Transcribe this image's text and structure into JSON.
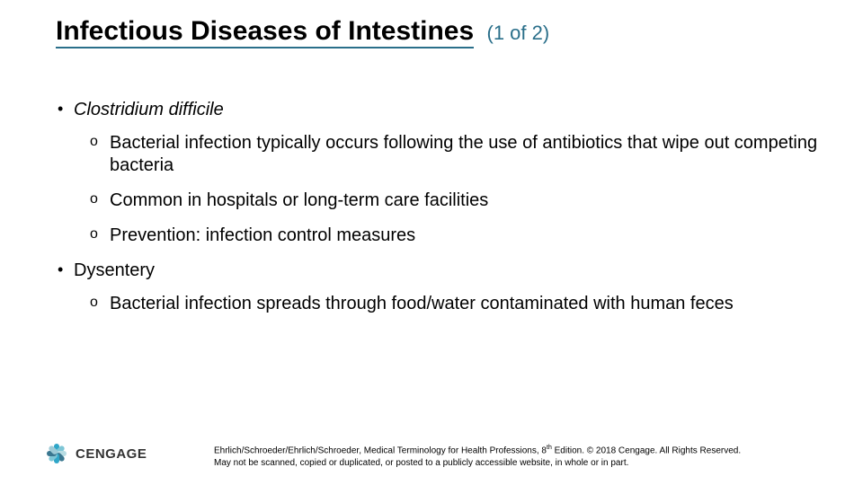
{
  "title": {
    "main": "Infectious Diseases of Intestines",
    "suffix": "(1 of 2)"
  },
  "colors": {
    "underline": "#2a6f8a",
    "suffix": "#2a6f8a",
    "text": "#000000",
    "background": "#ffffff",
    "logo_petals": [
      "#2fa6c8",
      "#7ec6d6",
      "#b7dce3",
      "#3a7790",
      "#2fa6c8",
      "#7ec6d6",
      "#3a7790",
      "#9dcad6"
    ]
  },
  "bullets": [
    {
      "label": "Clostridium difficile",
      "italic": true,
      "sub": [
        "Bacterial infection typically occurs following the use of antibiotics that wipe out competing bacteria",
        "Common in hospitals or long-term care facilities",
        "Prevention: infection control measures"
      ]
    },
    {
      "label": "Dysentery",
      "italic": false,
      "sub": [
        "Bacterial infection spreads through food/water contaminated with human feces"
      ]
    }
  ],
  "footer": {
    "line1_pre": "Ehrlich/Schroeder/Ehrlich/Schroeder, Medical Terminology for Health Professions, 8",
    "line1_sup": "th",
    "line1_post": " Edition. © 2018 Cengage. All Rights Reserved.",
    "line2": "May not be scanned, copied or duplicated, or posted to a publicly accessible website, in whole or in part."
  },
  "logo": {
    "text": "CENGAGE"
  }
}
